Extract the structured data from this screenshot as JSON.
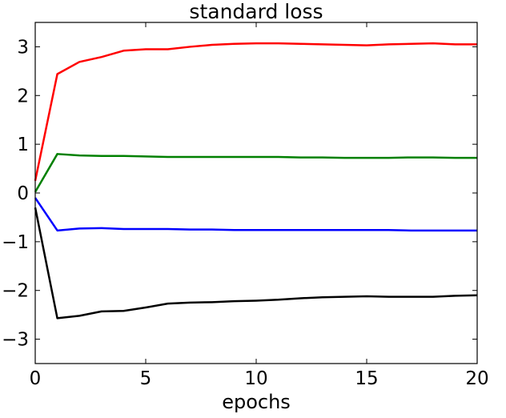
{
  "chart_data": {
    "type": "line",
    "title": "standard loss",
    "xlabel": "epochs",
    "ylabel": "",
    "xlim": [
      0,
      20
    ],
    "ylim": [
      -3.5,
      3.5
    ],
    "xticks": [
      0,
      5,
      10,
      15,
      20
    ],
    "xtick_labels": [
      "0",
      "5",
      "10",
      "15",
      "20"
    ],
    "yticks": [
      3,
      2,
      1,
      0,
      -1,
      -2,
      -3
    ],
    "ytick_labels": [
      "3",
      "2",
      "1",
      "0",
      "−1",
      "−2",
      "−3"
    ],
    "grid": false,
    "legend": "none",
    "x": [
      0,
      1,
      2,
      3,
      4,
      5,
      6,
      7,
      8,
      9,
      10,
      11,
      12,
      13,
      14,
      15,
      16,
      17,
      18,
      19,
      20
    ],
    "series": [
      {
        "color": "#ff0000",
        "values": [
          0.25,
          2.44,
          2.69,
          2.79,
          2.92,
          2.95,
          2.95,
          3.0,
          3.04,
          3.06,
          3.07,
          3.07,
          3.06,
          3.05,
          3.04,
          3.03,
          3.05,
          3.06,
          3.07,
          3.05,
          3.05
        ]
      },
      {
        "color": "#008000",
        "values": [
          0.02,
          0.8,
          0.77,
          0.76,
          0.76,
          0.75,
          0.74,
          0.74,
          0.74,
          0.74,
          0.74,
          0.74,
          0.73,
          0.73,
          0.72,
          0.72,
          0.72,
          0.73,
          0.73,
          0.72,
          0.72
        ]
      },
      {
        "color": "#0000ff",
        "values": [
          -0.1,
          -0.77,
          -0.73,
          -0.72,
          -0.74,
          -0.74,
          -0.74,
          -0.75,
          -0.75,
          -0.76,
          -0.76,
          -0.76,
          -0.76,
          -0.76,
          -0.76,
          -0.76,
          -0.76,
          -0.77,
          -0.77,
          -0.77,
          -0.77
        ]
      },
      {
        "color": "#000000",
        "values": [
          -0.3,
          -2.57,
          -2.52,
          -2.43,
          -2.42,
          -2.35,
          -2.27,
          -2.25,
          -2.24,
          -2.22,
          -2.21,
          -2.19,
          -2.16,
          -2.14,
          -2.13,
          -2.12,
          -2.13,
          -2.13,
          -2.13,
          -2.11,
          -2.1
        ]
      }
    ]
  }
}
